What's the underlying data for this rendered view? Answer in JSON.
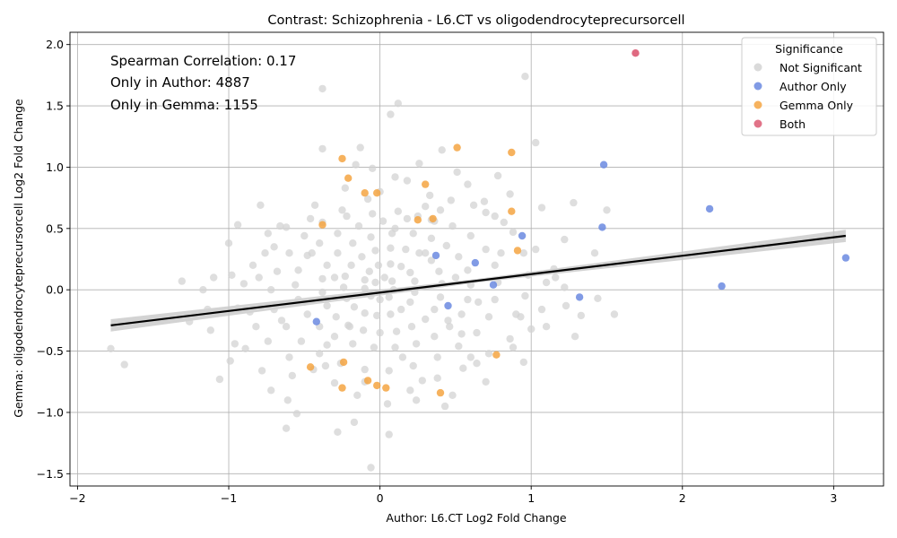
{
  "chart_data": {
    "type": "scatter",
    "title": "Contrast: Schizophrenia - L6.CT vs oligodendrocyteprecursorcell",
    "xlabel": "Author: L6.CT Log2 Fold Change",
    "ylabel": "Gemma: oligodendrocyteprecursorcell Log2 Fold Change",
    "xlim": [
      -2.05,
      3.33
    ],
    "ylim": [
      -1.6,
      2.1
    ],
    "xticks": [
      "−2",
      "−1",
      "0",
      "1",
      "2",
      "3"
    ],
    "xtick_values": [
      -2,
      -1,
      0,
      1,
      2,
      3
    ],
    "yticks": [
      "−1.5",
      "−1.0",
      "−0.5",
      "0.0",
      "0.5",
      "1.0",
      "1.5",
      "2.0"
    ],
    "ytick_values": [
      -1.5,
      -1.0,
      -0.5,
      0.0,
      0.5,
      1.0,
      1.5,
      2.0
    ],
    "grid": true,
    "annotations": [
      "Spearman Correlation: 0.17",
      "Only in Author: 4887",
      "Only in Gemma: 1155"
    ],
    "legend": {
      "title": "Significance",
      "placement": "top-right",
      "entries": [
        "Not Significant",
        "Author Only",
        "Gemma Only",
        "Both"
      ]
    },
    "colors": {
      "Not Significant": "#d3d3d3",
      "Author Only": "#6b8ae0",
      "Gemma Only": "#f5a442",
      "Both": "#dc5a73",
      "regression": "#000000",
      "ci_band": "#c8c8c8"
    },
    "regression": {
      "x": [
        -1.78,
        3.08
      ],
      "y": [
        -0.29,
        0.44
      ],
      "ci_halfwidth_at_ends": 0.05
    },
    "series": [
      {
        "name": "Not Significant",
        "points": [
          [
            0.96,
            1.74
          ],
          [
            -0.38,
            1.64
          ],
          [
            0.12,
            1.52
          ],
          [
            0.07,
            1.43
          ],
          [
            1.03,
            1.2
          ],
          [
            -0.13,
            1.16
          ],
          [
            -0.38,
            1.15
          ],
          [
            0.41,
            1.14
          ],
          [
            0.26,
            1.03
          ],
          [
            -0.16,
            1.02
          ],
          [
            0.51,
            0.96
          ],
          [
            0.78,
            0.93
          ],
          [
            -0.05,
            0.99
          ],
          [
            1.5,
            0.65
          ],
          [
            1.28,
            0.71
          ],
          [
            1.07,
            0.67
          ],
          [
            -0.79,
            0.69
          ],
          [
            -0.94,
            0.53
          ],
          [
            -1.0,
            0.38
          ],
          [
            -0.74,
            0.46
          ],
          [
            -1.1,
            0.1
          ],
          [
            -1.31,
            0.07
          ],
          [
            -1.17,
            0.0
          ],
          [
            -1.14,
            -0.16
          ],
          [
            -1.26,
            -0.26
          ],
          [
            -1.12,
            -0.33
          ],
          [
            -0.96,
            -0.44
          ],
          [
            -0.89,
            -0.48
          ],
          [
            -1.78,
            -0.48
          ],
          [
            -1.69,
            -0.61
          ],
          [
            -1.06,
            -0.73
          ],
          [
            -0.99,
            -0.58
          ],
          [
            -0.78,
            -0.66
          ],
          [
            -0.72,
            -0.82
          ],
          [
            -0.61,
            -0.9
          ],
          [
            -0.55,
            -1.01
          ],
          [
            -0.62,
            -1.13
          ],
          [
            -0.28,
            -1.16
          ],
          [
            -0.06,
            -1.45
          ],
          [
            0.06,
            -1.18
          ],
          [
            -0.17,
            -1.08
          ],
          [
            0.24,
            -0.9
          ],
          [
            0.43,
            -0.95
          ],
          [
            0.7,
            -0.75
          ],
          [
            0.95,
            -0.59
          ],
          [
            1.0,
            -0.32
          ],
          [
            1.07,
            -0.16
          ],
          [
            1.23,
            -0.13
          ],
          [
            1.29,
            -0.38
          ],
          [
            1.33,
            -0.21
          ],
          [
            1.44,
            -0.07
          ],
          [
            1.55,
            -0.2
          ],
          [
            1.42,
            0.3
          ],
          [
            1.22,
            0.41
          ],
          [
            1.15,
            0.17
          ],
          [
            1.1,
            0.06
          ],
          [
            1.22,
            0.02
          ],
          [
            0.86,
            0.78
          ],
          [
            0.69,
            0.72
          ],
          [
            0.58,
            0.86
          ],
          [
            0.33,
            0.77
          ],
          [
            0.18,
            0.89
          ],
          [
            0.0,
            0.8
          ],
          [
            -0.23,
            0.83
          ],
          [
            -0.43,
            0.69
          ],
          [
            -0.62,
            0.51
          ],
          [
            -0.7,
            0.35
          ],
          [
            -0.84,
            0.2
          ],
          [
            -0.9,
            0.05
          ],
          [
            -0.94,
            -0.15
          ],
          [
            -0.82,
            -0.3
          ],
          [
            -0.74,
            -0.42
          ],
          [
            -0.6,
            -0.55
          ],
          [
            -0.44,
            -0.65
          ],
          [
            -0.3,
            -0.76
          ],
          [
            -0.15,
            -0.86
          ],
          [
            0.05,
            -0.93
          ],
          [
            0.2,
            -0.82
          ],
          [
            0.38,
            -0.72
          ],
          [
            0.55,
            -0.64
          ],
          [
            0.72,
            -0.52
          ],
          [
            0.86,
            -0.4
          ],
          [
            0.93,
            -0.22
          ],
          [
            0.96,
            -0.05
          ],
          [
            0.98,
            0.12
          ],
          [
            0.95,
            0.3
          ],
          [
            0.88,
            0.47
          ],
          [
            0.76,
            0.6
          ],
          [
            0.62,
            0.69
          ],
          [
            0.47,
            0.73
          ],
          [
            0.3,
            0.68
          ],
          [
            0.12,
            0.64
          ],
          [
            -0.05,
            0.62
          ],
          [
            -0.22,
            0.6
          ],
          [
            -0.38,
            0.55
          ],
          [
            -0.5,
            0.44
          ],
          [
            -0.6,
            0.3
          ],
          [
            -0.68,
            0.15
          ],
          [
            -0.72,
            0.0
          ],
          [
            -0.7,
            -0.16
          ],
          [
            -0.62,
            -0.3
          ],
          [
            -0.52,
            -0.42
          ],
          [
            -0.4,
            -0.52
          ],
          [
            -0.26,
            -0.6
          ],
          [
            -0.1,
            -0.65
          ],
          [
            0.06,
            -0.66
          ],
          [
            0.22,
            -0.62
          ],
          [
            0.38,
            -0.55
          ],
          [
            0.52,
            -0.46
          ],
          [
            0.64,
            -0.35
          ],
          [
            0.72,
            -0.22
          ],
          [
            0.76,
            -0.08
          ],
          [
            0.78,
            0.06
          ],
          [
            0.76,
            0.2
          ],
          [
            0.7,
            0.33
          ],
          [
            0.6,
            0.44
          ],
          [
            0.48,
            0.52
          ],
          [
            0.34,
            0.57
          ],
          [
            0.18,
            0.58
          ],
          [
            0.02,
            0.56
          ],
          [
            -0.14,
            0.52
          ],
          [
            -0.28,
            0.46
          ],
          [
            -0.4,
            0.38
          ],
          [
            -0.48,
            0.28
          ],
          [
            -0.54,
            0.16
          ],
          [
            -0.56,
            0.04
          ],
          [
            -0.54,
            -0.08
          ],
          [
            -0.48,
            -0.2
          ],
          [
            -0.4,
            -0.3
          ],
          [
            -0.3,
            -0.38
          ],
          [
            -0.18,
            -0.44
          ],
          [
            -0.04,
            -0.47
          ],
          [
            0.1,
            -0.47
          ],
          [
            0.24,
            -0.44
          ],
          [
            0.36,
            -0.38
          ],
          [
            0.46,
            -0.3
          ],
          [
            0.54,
            -0.2
          ],
          [
            0.58,
            -0.08
          ],
          [
            0.6,
            0.04
          ],
          [
            0.58,
            0.16
          ],
          [
            0.52,
            0.27
          ],
          [
            0.44,
            0.36
          ],
          [
            0.34,
            0.42
          ],
          [
            0.22,
            0.46
          ],
          [
            0.08,
            0.46
          ],
          [
            -0.06,
            0.43
          ],
          [
            -0.18,
            0.38
          ],
          [
            -0.28,
            0.3
          ],
          [
            -0.35,
            0.2
          ],
          [
            -0.38,
            0.09
          ],
          [
            -0.38,
            -0.02
          ],
          [
            -0.35,
            -0.13
          ],
          [
            -0.29,
            -0.22
          ],
          [
            -0.21,
            -0.29
          ],
          [
            -0.11,
            -0.33
          ],
          [
            0.0,
            -0.35
          ],
          [
            0.11,
            -0.34
          ],
          [
            0.21,
            -0.3
          ],
          [
            0.3,
            -0.24
          ],
          [
            0.36,
            -0.16
          ],
          [
            0.4,
            -0.06
          ],
          [
            0.41,
            0.05
          ],
          [
            0.39,
            0.15
          ],
          [
            0.34,
            0.24
          ],
          [
            0.26,
            0.3
          ],
          [
            0.17,
            0.33
          ],
          [
            0.07,
            0.34
          ],
          [
            -0.03,
            0.32
          ],
          [
            -0.12,
            0.27
          ],
          [
            -0.19,
            0.2
          ],
          [
            -0.23,
            0.11
          ],
          [
            -0.24,
            0.02
          ],
          [
            -0.22,
            -0.07
          ],
          [
            -0.17,
            -0.14
          ],
          [
            -0.1,
            -0.19
          ],
          [
            -0.02,
            -0.21
          ],
          [
            0.07,
            -0.2
          ],
          [
            0.14,
            -0.16
          ],
          [
            0.2,
            -0.1
          ],
          [
            0.23,
            -0.02
          ],
          [
            0.23,
            0.07
          ],
          [
            0.2,
            0.14
          ],
          [
            0.14,
            0.19
          ],
          [
            0.07,
            0.21
          ],
          [
            -0.01,
            0.2
          ],
          [
            -0.07,
            0.15
          ],
          [
            -0.1,
            0.08
          ],
          [
            -0.1,
            0.01
          ],
          [
            -0.06,
            -0.05
          ],
          [
            0.0,
            -0.08
          ],
          [
            0.06,
            -0.06
          ],
          [
            0.09,
            0.0
          ],
          [
            0.08,
            0.07
          ],
          [
            0.03,
            0.1
          ],
          [
            -0.03,
            0.06
          ],
          [
            0.1,
            0.5
          ],
          [
            -0.3,
            0.1
          ],
          [
            0.5,
            0.1
          ],
          [
            -0.2,
            -0.3
          ],
          [
            0.3,
            0.3
          ],
          [
            -0.5,
            -0.1
          ],
          [
            0.65,
            -0.1
          ],
          [
            0.15,
            -0.55
          ],
          [
            -0.45,
            0.3
          ],
          [
            0.8,
            0.3
          ],
          [
            -0.65,
            -0.25
          ],
          [
            0.25,
            0.6
          ],
          [
            -0.1,
            -0.75
          ],
          [
            0.45,
            -0.25
          ],
          [
            -0.35,
            -0.45
          ],
          [
            0.9,
            -0.2
          ],
          [
            0.4,
            0.65
          ],
          [
            -0.8,
            0.1
          ],
          [
            0.6,
            -0.55
          ],
          [
            -0.25,
            0.65
          ],
          [
            1.03,
            0.33
          ],
          [
            1.1,
            -0.3
          ],
          [
            1.16,
            0.1
          ],
          [
            0.88,
            -0.47
          ],
          [
            -0.86,
            -0.18
          ],
          [
            -0.98,
            0.12
          ],
          [
            -0.76,
            0.3
          ],
          [
            -0.66,
            0.52
          ],
          [
            -0.58,
            -0.7
          ],
          [
            0.48,
            -0.86
          ],
          [
            0.64,
            -0.6
          ],
          [
            0.82,
            0.55
          ],
          [
            0.7,
            0.63
          ],
          [
            -0.08,
            0.74
          ],
          [
            0.36,
            0.56
          ],
          [
            -0.46,
            0.58
          ],
          [
            0.28,
            -0.74
          ],
          [
            -0.36,
            -0.62
          ],
          [
            0.1,
            0.92
          ],
          [
            0.54,
            -0.36
          ]
        ]
      },
      {
        "name": "Author Only",
        "points": [
          [
            1.48,
            1.02
          ],
          [
            2.18,
            0.66
          ],
          [
            1.47,
            0.51
          ],
          [
            0.94,
            0.44
          ],
          [
            3.08,
            0.26
          ],
          [
            2.26,
            0.03
          ],
          [
            1.32,
            -0.06
          ],
          [
            0.63,
            0.22
          ],
          [
            0.37,
            0.28
          ],
          [
            0.75,
            0.04
          ],
          [
            -0.42,
            -0.26
          ],
          [
            0.45,
            -0.13
          ]
        ]
      },
      {
        "name": "Gemma Only",
        "points": [
          [
            0.51,
            1.16
          ],
          [
            0.87,
            1.12
          ],
          [
            -0.25,
            1.07
          ],
          [
            -0.21,
            0.91
          ],
          [
            0.3,
            0.86
          ],
          [
            -0.1,
            0.79
          ],
          [
            -0.02,
            0.79
          ],
          [
            0.87,
            0.64
          ],
          [
            0.35,
            0.58
          ],
          [
            0.25,
            0.57
          ],
          [
            -0.38,
            0.53
          ],
          [
            0.91,
            0.32
          ],
          [
            -0.46,
            -0.63
          ],
          [
            -0.24,
            -0.59
          ],
          [
            0.77,
            -0.53
          ],
          [
            -0.08,
            -0.74
          ],
          [
            0.4,
            -0.84
          ],
          [
            -0.25,
            -0.8
          ],
          [
            -0.02,
            -0.78
          ],
          [
            0.04,
            -0.8
          ]
        ]
      },
      {
        "name": "Both",
        "points": [
          [
            1.69,
            1.93
          ]
        ]
      }
    ]
  }
}
